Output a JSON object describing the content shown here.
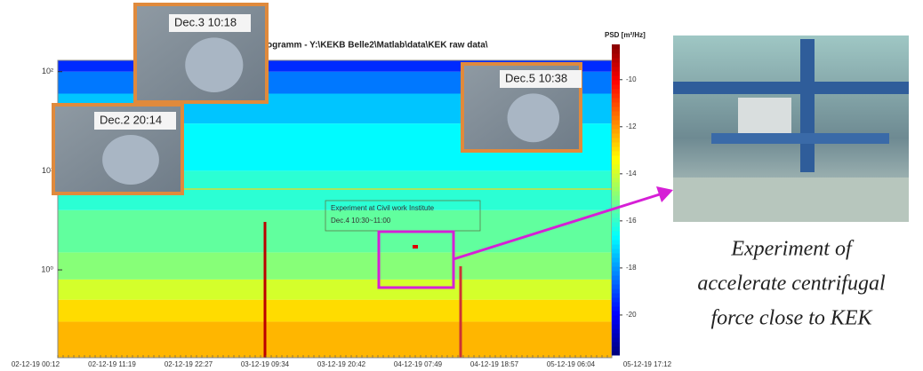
{
  "chart_data": {
    "type": "heatmap",
    "title": "ogramm - Y:\\KEKB Belle2\\Matlab\\data\\KEK raw data\\",
    "colorbar_label": "PSD [m²/Hz]",
    "y_log": true,
    "ylim": [
      0.13,
      130
    ],
    "yticks": [
      {
        "value": 1,
        "label": "10⁰"
      },
      {
        "value": 10,
        "label": "10¹"
      },
      {
        "value": 100,
        "label": "10²"
      }
    ],
    "x_categories": [
      "02-12-19 00:12",
      "02-12-19 11:19",
      "02-12-19 22:27",
      "03-12-19 09:34",
      "03-12-19 20:42",
      "04-12-19 07:49",
      "04-12-19 18:57",
      "05-12-19 06:04",
      "05-12-19 17:12"
    ],
    "frequency_bins": [
      0.13,
      0.3,
      0.5,
      0.8,
      1.5,
      4,
      10,
      30,
      60,
      100,
      130
    ],
    "psd": [
      -12.5,
      -13,
      -14,
      -15,
      -15.5,
      -16.2,
      -16.8,
      -17.5,
      -18.5,
      -19.5
    ],
    "clim": [
      -21.7,
      -8.5
    ],
    "cticks": [
      -10,
      -12,
      -14,
      -16,
      -18,
      -20
    ],
    "annotation": [
      "Experiment at Civil work Institute",
      "Dec.4 10:30~11:00"
    ],
    "map_labels": [
      "Dec.3 10:18",
      "Dec.2 20:14",
      "Dec.5 10:38"
    ],
    "caption": [
      "Experiment of",
      "accelerate centrifugal",
      "force close to KEK"
    ]
  }
}
